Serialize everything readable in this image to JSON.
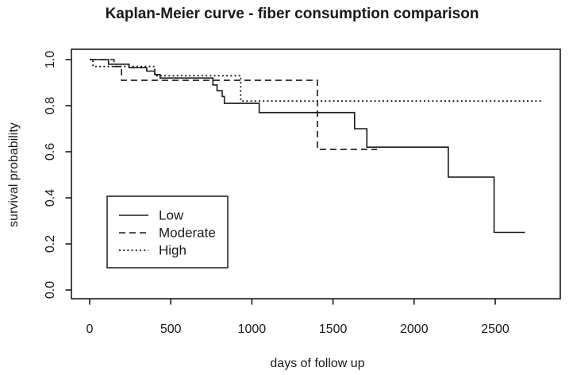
{
  "chart": {
    "title": "Kaplan-Meier curve - fiber consumption comparison",
    "xlabel": "days of follow up",
    "ylabel": "survival probability"
  },
  "colors": {
    "line": "#1a1a1a",
    "text": "#1a1a1a",
    "background": "#ffffff"
  },
  "chart_data": {
    "type": "line",
    "subtype": "kaplan-meier-step",
    "title": "Kaplan-Meier curve - fiber consumption comparison",
    "xlabel": "days of follow up",
    "ylabel": "survival probability",
    "xlim": [
      0,
      2900
    ],
    "ylim": [
      0,
      1.0
    ],
    "grid": false,
    "box": true,
    "x_ticks": [
      {
        "value": 0,
        "label": "0"
      },
      {
        "value": 500,
        "label": "500"
      },
      {
        "value": 1000,
        "label": "1000"
      },
      {
        "value": 1500,
        "label": "1500"
      },
      {
        "value": 2000,
        "label": "2000"
      },
      {
        "value": 2500,
        "label": "2500"
      }
    ],
    "y_ticks": [
      {
        "value": 0.0,
        "label": "0.0"
      },
      {
        "value": 0.2,
        "label": "0.2"
      },
      {
        "value": 0.4,
        "label": "0.4"
      },
      {
        "value": 0.6,
        "label": "0.6"
      },
      {
        "value": 0.8,
        "label": "0.8"
      },
      {
        "value": 1.0,
        "label": "1.0"
      }
    ],
    "legend": {
      "position": "inside-left-middle",
      "border": true,
      "entries": [
        {
          "label": "Low",
          "line_style": "solid"
        },
        {
          "label": "Moderate",
          "line_style": "dashed"
        },
        {
          "label": "High",
          "line_style": "dotted"
        }
      ]
    },
    "series": [
      {
        "name": "Low",
        "line_style": "solid",
        "steps": [
          [
            0,
            1.0
          ],
          [
            116,
            0.98
          ],
          [
            243,
            0.965
          ],
          [
            352,
            0.95
          ],
          [
            401,
            0.935
          ],
          [
            434,
            0.92
          ],
          [
            760,
            0.89
          ],
          [
            785,
            0.865
          ],
          [
            817,
            0.84
          ],
          [
            830,
            0.81
          ],
          [
            1045,
            0.77
          ],
          [
            1633,
            0.7
          ],
          [
            1709,
            0.62
          ],
          [
            2211,
            0.49
          ],
          [
            2493,
            0.25
          ]
        ],
        "end_day": 2684
      },
      {
        "name": "Moderate",
        "line_style": "dashed",
        "steps": [
          [
            0,
            1.0
          ],
          [
            150,
            0.97
          ],
          [
            196,
            0.91
          ],
          [
            1404,
            0.61
          ]
        ],
        "end_day": 1771
      },
      {
        "name": "High",
        "line_style": "dotted",
        "steps": [
          [
            0,
            1.0
          ],
          [
            20,
            0.97
          ],
          [
            401,
            0.93
          ],
          [
            931,
            0.82
          ]
        ],
        "end_day": 2782
      }
    ]
  }
}
